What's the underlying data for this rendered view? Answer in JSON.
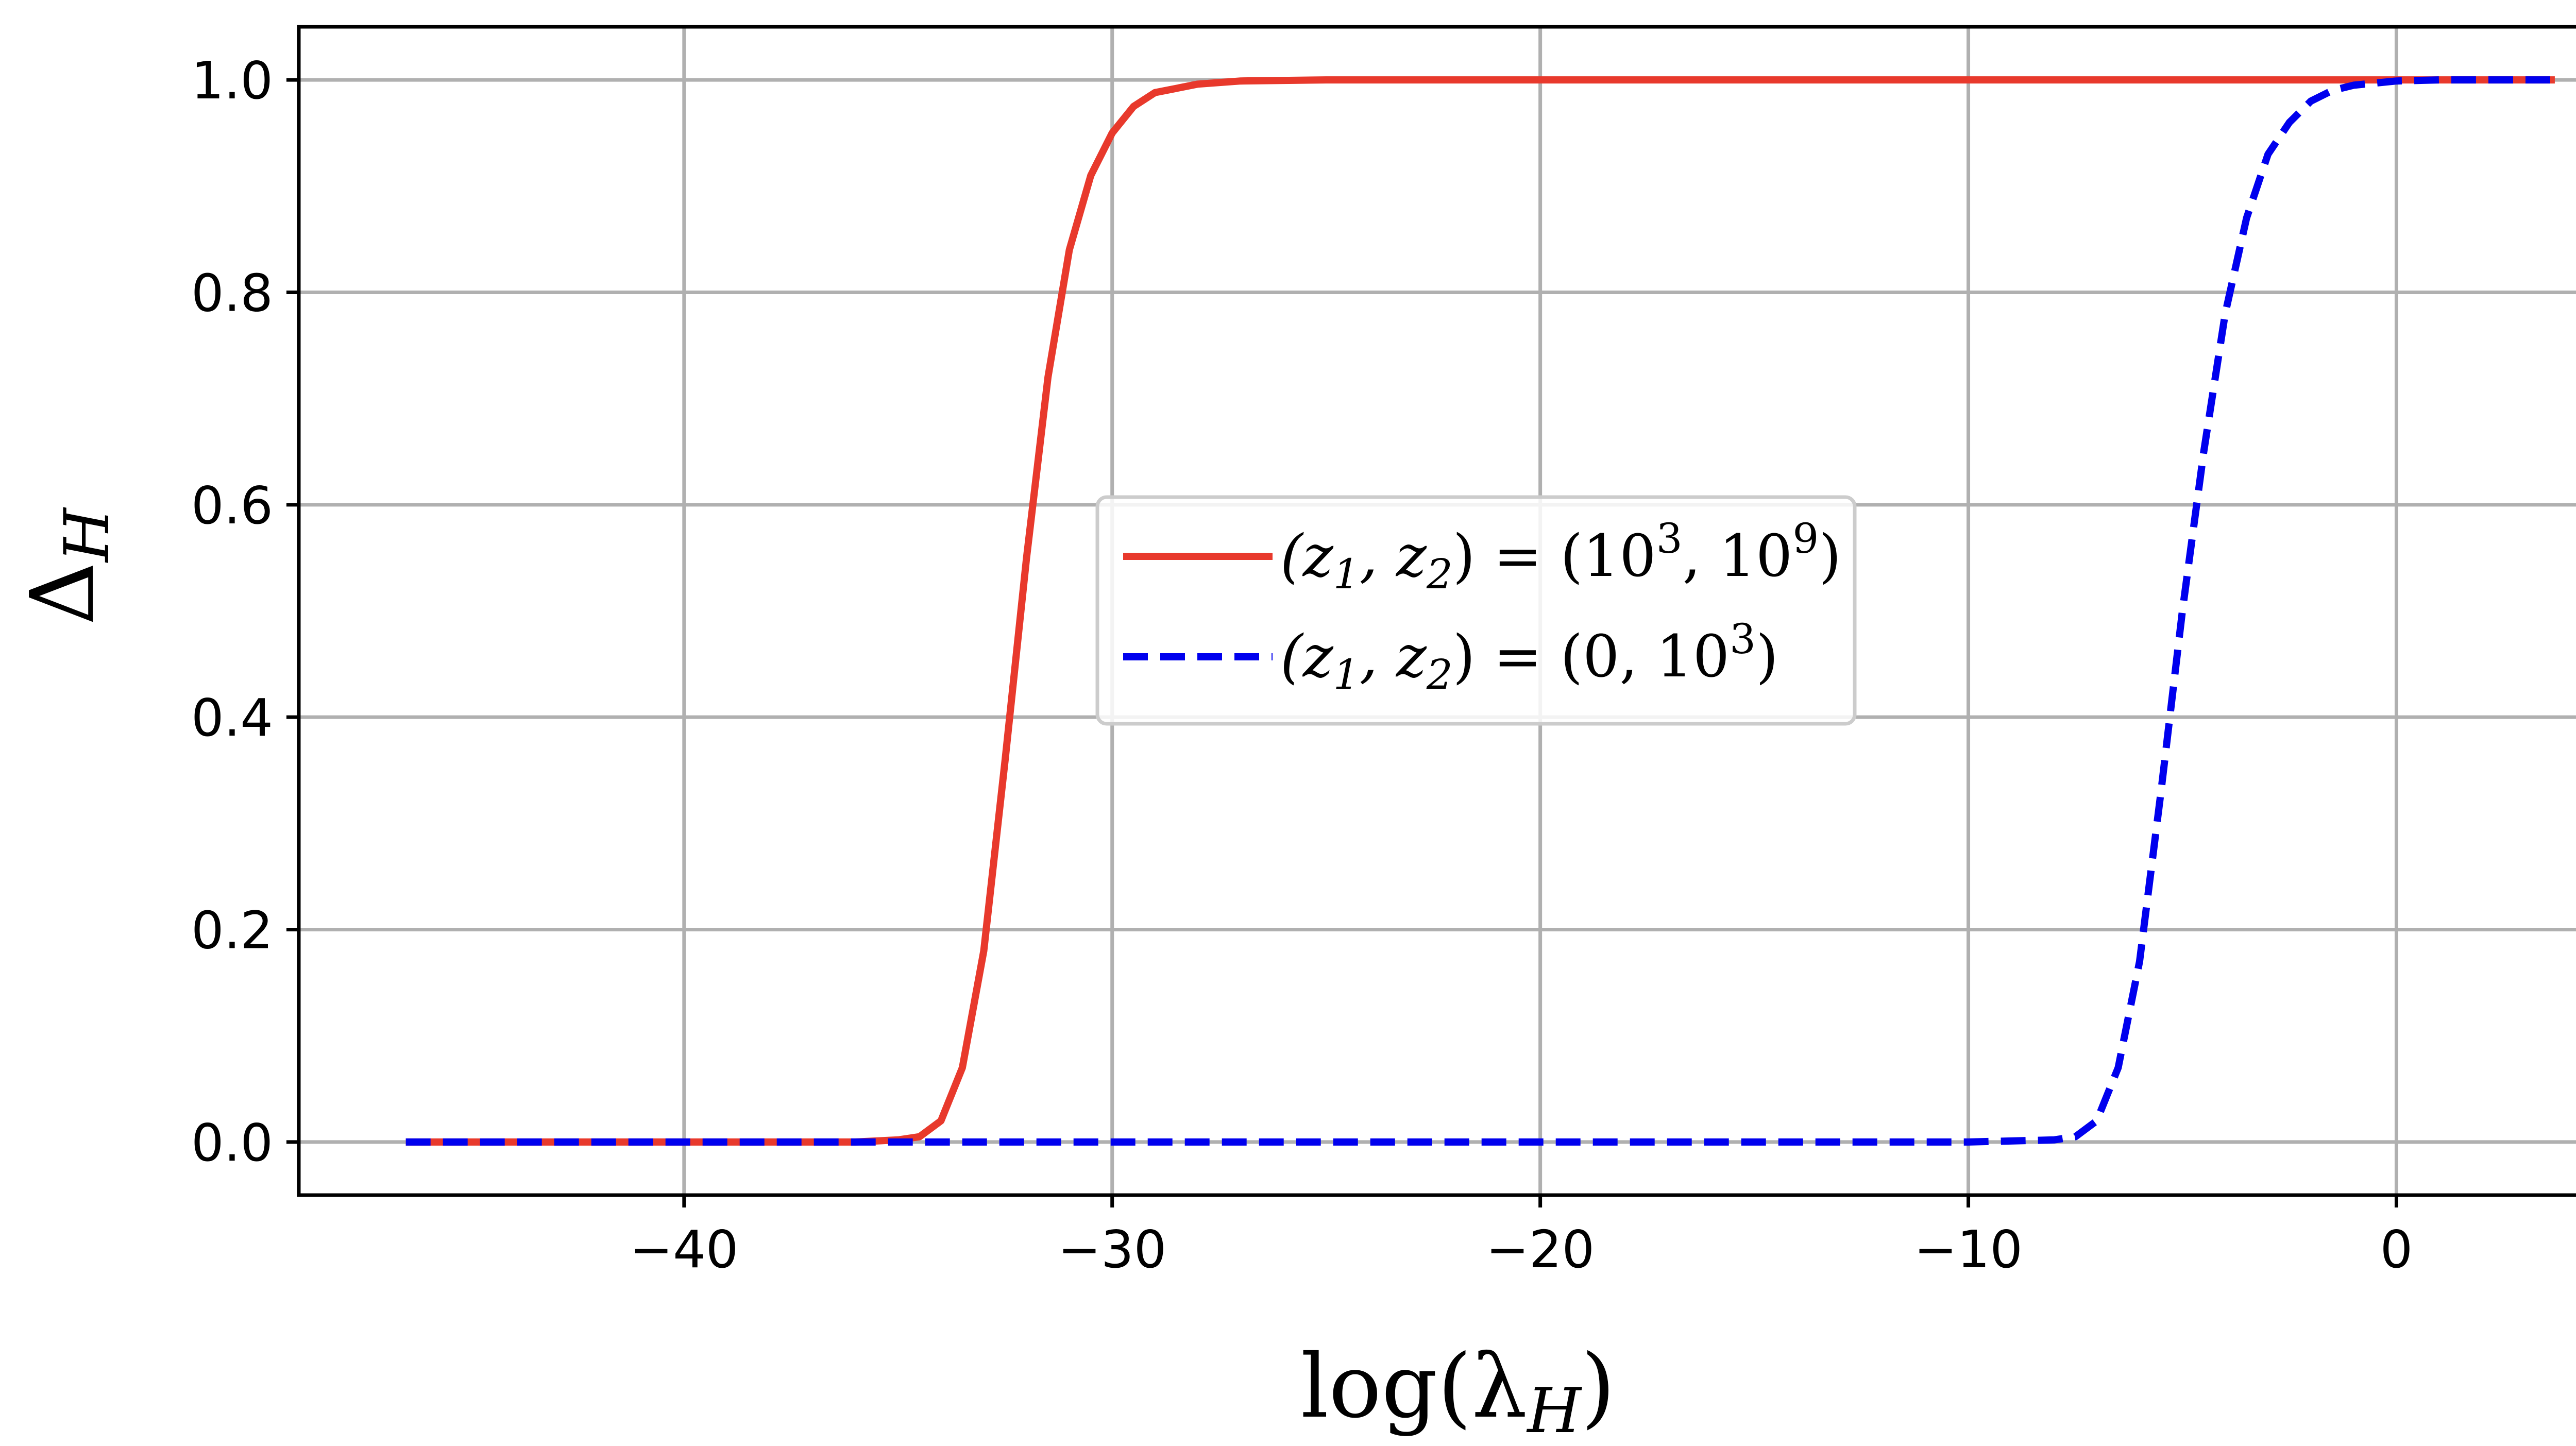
{
  "chart_data": {
    "type": "line",
    "title": "",
    "xlabel": "log(λ_H)",
    "ylabel": "Δ_H",
    "xlim": [
      -49,
      6
    ],
    "ylim": [
      -0.05,
      1.05
    ],
    "xticks": [
      -40,
      -30,
      -20,
      -10,
      0
    ],
    "yticks": [
      0.0,
      0.2,
      0.4,
      0.6,
      0.8,
      1.0
    ],
    "xtick_labels": [
      "−40",
      "−30",
      "−20",
      "−10",
      "0"
    ],
    "ytick_labels": [
      "0.0",
      "0.2",
      "0.4",
      "0.6",
      "0.8",
      "1.0"
    ],
    "grid": true,
    "legend_position": "center",
    "series": [
      {
        "name": "(z1, z2) = (10^3, 10^9)",
        "color": "#e8392c",
        "style": "solid",
        "x": [
          -46.5,
          -40,
          -36,
          -35,
          -34.5,
          -34,
          -33.5,
          -33,
          -32.5,
          -32,
          -31.5,
          -31,
          -30.5,
          -30,
          -29.5,
          -29,
          -28,
          -27,
          -25,
          -20,
          -10,
          0,
          3.7
        ],
        "values": [
          0.0,
          0.0,
          0.0,
          0.002,
          0.005,
          0.02,
          0.07,
          0.18,
          0.36,
          0.55,
          0.72,
          0.84,
          0.91,
          0.95,
          0.975,
          0.988,
          0.996,
          0.999,
          1.0,
          1.0,
          1.0,
          1.0,
          1.0
        ]
      },
      {
        "name": "(z1, z2) = (0, 10^3)",
        "color": "#0000ee",
        "style": "dashed",
        "x": [
          -46.5,
          -30,
          -20,
          -10,
          -8,
          -7.5,
          -7,
          -6.5,
          -6,
          -5.5,
          -5,
          -4.5,
          -4,
          -3.5,
          -3,
          -2.5,
          -2,
          -1.5,
          -1,
          0,
          1,
          3.7
        ],
        "values": [
          0.0,
          0.0,
          0.0,
          0.0,
          0.002,
          0.005,
          0.02,
          0.07,
          0.17,
          0.33,
          0.5,
          0.65,
          0.78,
          0.87,
          0.93,
          0.96,
          0.98,
          0.99,
          0.995,
          0.999,
          1.0,
          1.0
        ]
      }
    ]
  },
  "legend": {
    "entries": [
      {
        "prefix": "(z",
        "sub1": "1",
        "mid": ", z",
        "sub2": "2",
        "eq": ") = (10",
        "sup1": "3",
        "comma": ", 10",
        "sup2": "9",
        "end": ")"
      },
      {
        "prefix": "(z",
        "sub1": "1",
        "mid": ", z",
        "sub2": "2",
        "eq": ") = (0, 10",
        "sup1": "3",
        "end": ")"
      }
    ]
  },
  "axis_titles": {
    "x_main": "log(λ",
    "x_sub": "H",
    "x_end": ")",
    "y_main": "Δ",
    "y_sub": "H"
  }
}
